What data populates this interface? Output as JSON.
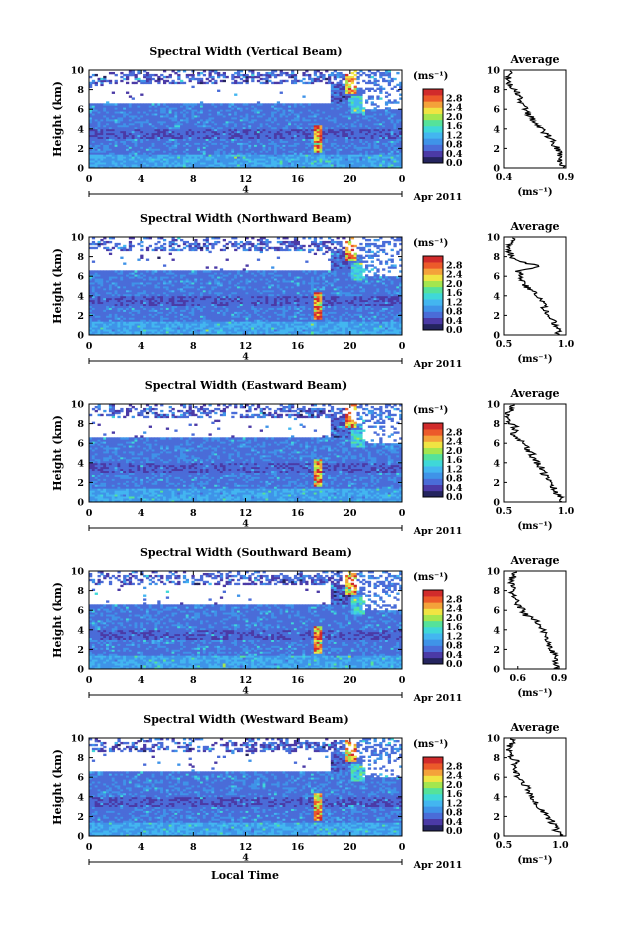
{
  "figure": {
    "xlabel": "Local Time",
    "date_label": "Apr 2011",
    "day_label": "4"
  },
  "colors": {
    "scale": [
      "#24245e",
      "#4b3aa6",
      "#4a6cd8",
      "#3f93e8",
      "#43b6f0",
      "#3fd8d8",
      "#55e29a",
      "#a4e64e",
      "#f0e442",
      "#f4a23a",
      "#ec5a2a",
      "#d12b2b"
    ],
    "profile_line": "#000000",
    "axis": "#000000"
  },
  "chart_data": [
    {
      "type": "heatmap",
      "title": "Spectral Width (Vertical Beam)",
      "ylabel": "Height (km)",
      "xlim": [
        0,
        24
      ],
      "ylim": [
        0,
        10
      ],
      "xticks": [
        "0",
        "4",
        "8",
        "12",
        "16",
        "20",
        "0"
      ],
      "yticks": [
        "0",
        "2",
        "4",
        "6",
        "8",
        "10"
      ],
      "colorbar": {
        "unit": "(ms⁻¹)",
        "ticks": [
          "0.0",
          "0.4",
          "0.8",
          "1.2",
          "1.6",
          "2.0",
          "2.4",
          "2.8"
        ],
        "range": [
          0,
          3.2
        ]
      },
      "profile": {
        "title": "Average",
        "xlabel": "(ms⁻¹)",
        "xticks": [
          "0.4",
          "0.9"
        ],
        "xlim": [
          0.4,
          0.9
        ],
        "yticks": [
          "0",
          "2",
          "4",
          "6",
          "8",
          "10"
        ],
        "heights": [
          0,
          0.5,
          1,
          1.5,
          2,
          2.5,
          3,
          3.5,
          4,
          4.5,
          5,
          5.5,
          6,
          6.5,
          7,
          7.5,
          8,
          8.5,
          9,
          9.5
        ],
        "values": [
          0.88,
          0.86,
          0.84,
          0.86,
          0.83,
          0.8,
          0.78,
          0.74,
          0.7,
          0.66,
          0.63,
          0.6,
          0.57,
          0.55,
          0.53,
          0.52,
          0.48,
          0.44,
          0.42,
          0.45
        ]
      }
    },
    {
      "type": "heatmap",
      "title": "Spectral Width (Northward Beam)",
      "ylabel": "Height (km)",
      "xlim": [
        0,
        24
      ],
      "ylim": [
        0,
        10
      ],
      "xticks": [
        "0",
        "4",
        "8",
        "12",
        "16",
        "20",
        "0"
      ],
      "yticks": [
        "0",
        "2",
        "4",
        "6",
        "8",
        "10"
      ],
      "colorbar": {
        "unit": "(ms⁻¹)",
        "ticks": [
          "0.0",
          "0.4",
          "0.8",
          "1.2",
          "1.6",
          "2.0",
          "2.4",
          "2.8"
        ],
        "range": [
          0,
          3.2
        ]
      },
      "profile": {
        "title": "Average",
        "xlabel": "(ms⁻¹)",
        "xticks": [
          "0.5",
          "1.0"
        ],
        "xlim": [
          0.5,
          1.0
        ],
        "yticks": [
          "0",
          "2",
          "4",
          "6",
          "8",
          "10"
        ],
        "heights": [
          0,
          0.5,
          1,
          1.5,
          2,
          2.5,
          3,
          3.5,
          4,
          4.5,
          5,
          5.5,
          6,
          6.5,
          7,
          7.5,
          8,
          8.5,
          9,
          9.5
        ],
        "values": [
          0.95,
          0.93,
          0.92,
          0.9,
          0.86,
          0.84,
          0.82,
          0.8,
          0.76,
          0.72,
          0.68,
          0.66,
          0.64,
          0.62,
          0.8,
          0.62,
          0.56,
          0.54,
          0.53,
          0.56
        ]
      }
    },
    {
      "type": "heatmap",
      "title": "Spectral Width (Eastward Beam)",
      "ylabel": "Height (km)",
      "xlim": [
        0,
        24
      ],
      "ylim": [
        0,
        10
      ],
      "xticks": [
        "0",
        "4",
        "8",
        "12",
        "16",
        "20",
        "0"
      ],
      "yticks": [
        "0",
        "2",
        "4",
        "6",
        "8",
        "10"
      ],
      "colorbar": {
        "unit": "(ms⁻¹)",
        "ticks": [
          "0.0",
          "0.4",
          "0.8",
          "1.2",
          "1.6",
          "2.0",
          "2.4",
          "2.8"
        ],
        "range": [
          0,
          3.2
        ]
      },
      "profile": {
        "title": "Average",
        "xlabel": "(ms⁻¹)",
        "xticks": [
          "0.5",
          "1.0"
        ],
        "xlim": [
          0.5,
          1.0
        ],
        "yticks": [
          "0",
          "2",
          "4",
          "6",
          "8",
          "10"
        ],
        "heights": [
          0,
          0.5,
          1,
          1.5,
          2,
          2.5,
          3,
          3.5,
          4,
          4.5,
          5,
          5.5,
          6,
          6.5,
          7,
          7.5,
          8,
          8.5,
          9,
          9.5
        ],
        "values": [
          0.97,
          0.95,
          0.92,
          0.9,
          0.86,
          0.84,
          0.82,
          0.8,
          0.76,
          0.74,
          0.72,
          0.68,
          0.66,
          0.6,
          0.58,
          0.6,
          0.56,
          0.54,
          0.53,
          0.57
        ]
      }
    },
    {
      "type": "heatmap",
      "title": "Spectral Width (Southward Beam)",
      "ylabel": "Height (km)",
      "xlim": [
        0,
        24
      ],
      "ylim": [
        0,
        10
      ],
      "xticks": [
        "0",
        "4",
        "8",
        "12",
        "16",
        "20",
        "0"
      ],
      "yticks": [
        "0",
        "2",
        "4",
        "6",
        "8",
        "10"
      ],
      "colorbar": {
        "unit": "(ms⁻¹)",
        "ticks": [
          "0.0",
          "0.4",
          "0.8",
          "1.2",
          "1.6",
          "2.0",
          "2.4",
          "2.8"
        ],
        "range": [
          0,
          3.2
        ]
      },
      "profile": {
        "title": "Average",
        "xlabel": "(ms⁻¹)",
        "xticks": [
          "0.6",
          "0.9"
        ],
        "xlim": [
          0.5,
          0.95
        ],
        "yticks": [
          "0",
          "2",
          "4",
          "6",
          "8",
          "10"
        ],
        "heights": [
          0,
          0.5,
          1,
          1.5,
          2,
          2.5,
          3,
          3.5,
          4,
          4.5,
          5,
          5.5,
          6,
          6.5,
          7,
          7.5,
          8,
          8.5,
          9,
          9.5
        ],
        "values": [
          0.9,
          0.88,
          0.87,
          0.86,
          0.84,
          0.83,
          0.82,
          0.8,
          0.78,
          0.76,
          0.72,
          0.66,
          0.64,
          0.6,
          0.58,
          0.57,
          0.56,
          0.55,
          0.54,
          0.57
        ]
      }
    },
    {
      "type": "heatmap",
      "title": "Spectral Width (Westward Beam)",
      "ylabel": "Height (km)",
      "xlim": [
        0,
        24
      ],
      "ylim": [
        0,
        10
      ],
      "xticks": [
        "0",
        "4",
        "8",
        "12",
        "16",
        "20",
        "0"
      ],
      "yticks": [
        "0",
        "2",
        "4",
        "6",
        "8",
        "10"
      ],
      "colorbar": {
        "unit": "(ms⁻¹)",
        "ticks": [
          "0.0",
          "0.4",
          "0.8",
          "1.2",
          "1.6",
          "2.0",
          "2.4",
          "2.8"
        ],
        "range": [
          0,
          3.2
        ]
      },
      "profile": {
        "title": "Average",
        "xlabel": "(ms⁻¹)",
        "xticks": [
          "0.5",
          "1.0"
        ],
        "xlim": [
          0.5,
          1.05
        ],
        "yticks": [
          "0",
          "2",
          "4",
          "6",
          "8",
          "10"
        ],
        "heights": [
          0,
          0.5,
          1,
          1.5,
          2,
          2.5,
          3,
          3.5,
          4,
          4.5,
          5,
          5.5,
          6,
          6.5,
          7,
          7.5,
          8,
          8.5,
          9,
          9.5
        ],
        "values": [
          1.0,
          0.97,
          0.95,
          0.92,
          0.88,
          0.84,
          0.8,
          0.78,
          0.76,
          0.72,
          0.7,
          0.66,
          0.62,
          0.6,
          0.58,
          0.62,
          0.57,
          0.55,
          0.54,
          0.58
        ]
      }
    }
  ]
}
